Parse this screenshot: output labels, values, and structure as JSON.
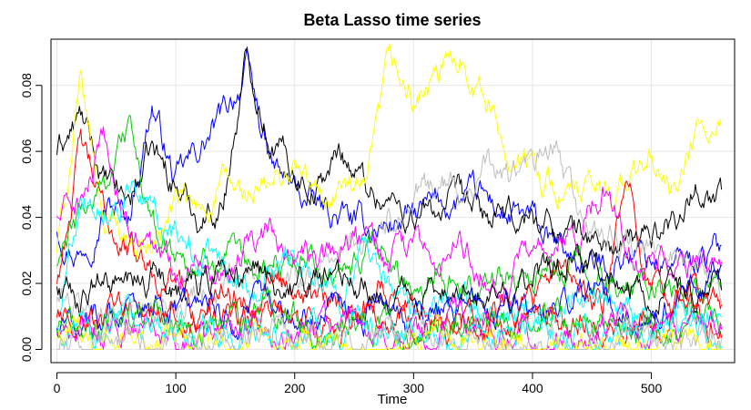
{
  "chart_data": {
    "type": "line",
    "title": "Beta Lasso time series",
    "xlabel": "Time",
    "ylabel": "",
    "xlim": [
      -5,
      570
    ],
    "ylim": [
      -0.004,
      0.094
    ],
    "x_ticks": [
      0,
      100,
      200,
      300,
      400,
      500
    ],
    "x_tick_labels": [
      "0",
      "100",
      "200",
      "300",
      "400",
      "500"
    ],
    "y_ticks": [
      0.0,
      0.02,
      0.04,
      0.06,
      0.08
    ],
    "y_tick_labels": [
      "0.00",
      "0.02",
      "0.04",
      "0.06",
      "0.08"
    ],
    "grid": true,
    "n_points": 560,
    "series": [
      {
        "color": "#0000FF",
        "values": [
          0.037,
          0.03,
          0.045,
          0.04,
          0.075,
          0.05,
          0.06,
          0.07,
          0.085,
          0.055,
          0.048,
          0.042,
          0.04,
          0.036,
          0.038,
          0.04,
          0.043,
          0.045,
          0.045,
          0.04,
          0.038,
          0.03,
          0.026,
          0.025,
          0.03,
          0.028,
          0.025,
          0.028,
          0.03
        ]
      },
      {
        "color": "#000000",
        "values": [
          0.06,
          0.07,
          0.05,
          0.045,
          0.06,
          0.05,
          0.04,
          0.045,
          0.088,
          0.065,
          0.055,
          0.05,
          0.06,
          0.05,
          0.045,
          0.04,
          0.042,
          0.044,
          0.04,
          0.038,
          0.04,
          0.037,
          0.035,
          0.032,
          0.03,
          0.035,
          0.04,
          0.05,
          0.046
        ]
      },
      {
        "color": "#FFFF00",
        "values": [
          0.03,
          0.078,
          0.04,
          0.035,
          0.03,
          0.045,
          0.04,
          0.05,
          0.045,
          0.048,
          0.055,
          0.045,
          0.05,
          0.045,
          0.085,
          0.075,
          0.08,
          0.09,
          0.078,
          0.06,
          0.055,
          0.05,
          0.045,
          0.048,
          0.05,
          0.058,
          0.045,
          0.065,
          0.063
        ]
      },
      {
        "color": "#BEBEBE",
        "values": [
          0.015,
          0.012,
          0.01,
          0.014,
          0.012,
          0.015,
          0.02,
          0.018,
          0.02,
          0.022,
          0.02,
          0.025,
          0.03,
          0.035,
          0.04,
          0.045,
          0.05,
          0.048,
          0.055,
          0.052,
          0.055,
          0.06,
          0.04,
          0.035,
          0.03,
          0.028,
          0.03,
          0.025,
          0.02
        ]
      },
      {
        "color": "#FF0000",
        "values": [
          0.02,
          0.062,
          0.04,
          0.03,
          0.025,
          0.02,
          0.01,
          0.02,
          0.015,
          0.025,
          0.02,
          0.015,
          0.01,
          0.015,
          0.02,
          0.012,
          0.015,
          0.01,
          0.012,
          0.015,
          0.01,
          0.02,
          0.015,
          0.012,
          0.05,
          0.02,
          0.015,
          0.018,
          0.012
        ]
      },
      {
        "color": "#00CD00",
        "values": [
          0.025,
          0.04,
          0.05,
          0.069,
          0.035,
          0.03,
          0.025,
          0.03,
          0.02,
          0.025,
          0.03,
          0.025,
          0.02,
          0.028,
          0.025,
          0.02,
          0.025,
          0.02,
          0.018,
          0.025,
          0.02,
          0.022,
          0.025,
          0.02,
          0.018,
          0.02,
          0.015,
          0.018,
          0.02
        ]
      },
      {
        "color": "#FF00FF",
        "values": [
          0.04,
          0.045,
          0.06,
          0.035,
          0.03,
          0.025,
          0.03,
          0.025,
          0.03,
          0.035,
          0.03,
          0.025,
          0.03,
          0.035,
          0.025,
          0.03,
          0.025,
          0.03,
          0.025,
          0.02,
          0.03,
          0.025,
          0.035,
          0.05,
          0.03,
          0.025,
          0.03,
          0.025,
          0.02
        ]
      },
      {
        "color": "#00FFFF",
        "values": [
          0.01,
          0.05,
          0.045,
          0.05,
          0.04,
          0.035,
          0.03,
          0.025,
          0.02,
          0.025,
          0.03,
          0.025,
          0.02,
          0.03,
          0.02,
          0.015,
          0.01,
          0.015,
          0.01,
          0.008,
          0.01,
          0.012,
          0.01,
          0.015,
          0.01,
          0.008,
          0.01,
          0.012,
          0.01
        ]
      },
      {
        "color": "#000000",
        "values": [
          0.018,
          0.015,
          0.02,
          0.018,
          0.022,
          0.02,
          0.018,
          0.025,
          0.022,
          0.02,
          0.018,
          0.02,
          0.022,
          0.02,
          0.018,
          0.015,
          0.018,
          0.02,
          0.022,
          0.018,
          0.02,
          0.025,
          0.028,
          0.022,
          0.02,
          0.018,
          0.02,
          0.015,
          0.018
        ]
      },
      {
        "color": "#0000FF",
        "values": [
          0.005,
          0.008,
          0.012,
          0.01,
          0.015,
          0.012,
          0.01,
          0.008,
          0.012,
          0.015,
          0.012,
          0.01,
          0.015,
          0.012,
          0.01,
          0.008,
          0.01,
          0.012,
          0.01,
          0.015,
          0.012,
          0.01,
          0.02,
          0.015,
          0.012,
          0.01,
          0.015,
          0.02,
          0.025
        ]
      },
      {
        "color": "#FF0000",
        "values": [
          0.008,
          0.012,
          0.006,
          0.01,
          0.014,
          0.008,
          0.005,
          0.01,
          0.008,
          0.012,
          0.01,
          0.006,
          0.008,
          0.012,
          0.01,
          0.005,
          0.008,
          0.01,
          0.006,
          0.008,
          0.012,
          0.01,
          0.008,
          0.006,
          0.01,
          0.008,
          0.012,
          0.01,
          0.008
        ]
      },
      {
        "color": "#00CD00",
        "values": [
          0.003,
          0.006,
          0.008,
          0.005,
          0.01,
          0.006,
          0.004,
          0.008,
          0.006,
          0.01,
          0.008,
          0.005,
          0.006,
          0.008,
          0.005,
          0.004,
          0.006,
          0.008,
          0.005,
          0.006,
          0.008,
          0.006,
          0.01,
          0.008,
          0.005,
          0.006,
          0.008,
          0.01,
          0.006
        ]
      },
      {
        "color": "#FF00FF",
        "values": [
          0.002,
          0.004,
          0.006,
          0.01,
          0.005,
          0.004,
          0.006,
          0.003,
          0.005,
          0.008,
          0.006,
          0.004,
          0.005,
          0.006,
          0.004,
          0.003,
          0.005,
          0.006,
          0.01,
          0.005,
          0.004,
          0.006,
          0.005,
          0.004,
          0.006,
          0.005,
          0.004,
          0.006,
          0.005
        ]
      },
      {
        "color": "#00FFFF",
        "values": [
          0.004,
          0.006,
          0.005,
          0.008,
          0.006,
          0.004,
          0.005,
          0.006,
          0.004,
          0.005,
          0.006,
          0.008,
          0.006,
          0.005,
          0.004,
          0.006,
          0.005,
          0.004,
          0.006,
          0.005,
          0.008,
          0.006,
          0.004,
          0.005,
          0.006,
          0.004,
          0.005,
          0.006,
          0.004
        ]
      },
      {
        "color": "#FFFF00",
        "values": [
          0.001,
          0.003,
          0.002,
          0.004,
          0.003,
          0.002,
          0.004,
          0.003,
          0.002,
          0.005,
          0.003,
          0.002,
          0.004,
          0.003,
          0.002,
          0.003,
          0.004,
          0.002,
          0.003,
          0.004,
          0.002,
          0.003,
          0.002,
          0.004,
          0.003,
          0.002,
          0.003,
          0.002,
          0.001
        ]
      },
      {
        "color": "#BEBEBE",
        "values": [
          0.001,
          0.002,
          0.003,
          0.002,
          0.001,
          0.003,
          0.002,
          0.001,
          0.002,
          0.003,
          0.002,
          0.001,
          0.002,
          0.001,
          0.003,
          0.002,
          0.001,
          0.002,
          0.003,
          0.002,
          0.001,
          0.002,
          0.001,
          0.002,
          0.003,
          0.002,
          0.001,
          0.002,
          0.001
        ]
      }
    ]
  }
}
